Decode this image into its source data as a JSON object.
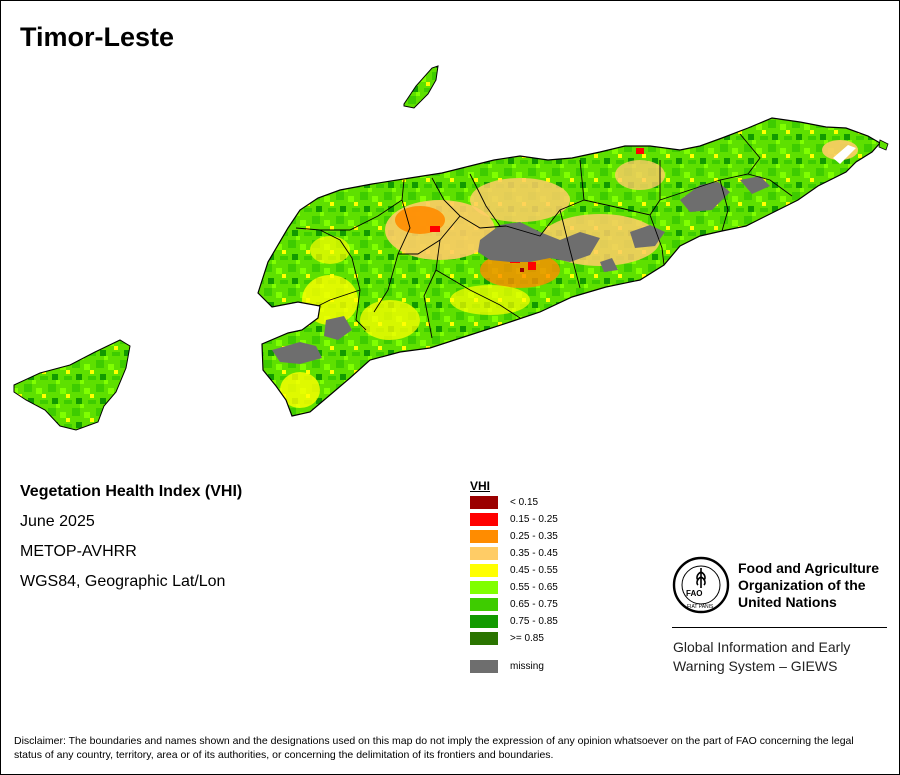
{
  "map": {
    "title": "Timor-Leste",
    "subtitle": "Vegetation Health Index (VHI)",
    "date": "June 2025",
    "sensor": "METOP-AVHRR",
    "projection": "WGS84, Geographic Lat/Lon"
  },
  "legend": {
    "title": "VHI",
    "items": [
      {
        "label": "< 0.15",
        "color": "#9b0000"
      },
      {
        "label": "0.15 - 0.25",
        "color": "#ff0000"
      },
      {
        "label": "0.25 - 0.35",
        "color": "#ff8c00"
      },
      {
        "label": "0.35 - 0.45",
        "color": "#ffcc66"
      },
      {
        "label": "0.45 - 0.55",
        "color": "#ffff00"
      },
      {
        "label": "0.55 - 0.65",
        "color": "#80ff00"
      },
      {
        "label": "0.65 - 0.75",
        "color": "#3ecc00"
      },
      {
        "label": "0.75 - 0.85",
        "color": "#129a00"
      },
      {
        "label": ">= 0.85",
        "color": "#2a7400"
      }
    ],
    "missing": {
      "label": "missing",
      "color": "#6e6e6e"
    }
  },
  "org": {
    "name_line1": "Food and Agriculture",
    "name_line2": "Organization of the",
    "name_line3": "United Nations",
    "system_line1": "Global Information and Early",
    "system_line2": "Warning System – GIEWS",
    "logo_letters": "FAO",
    "logo_motto": "FIAT PANIS"
  },
  "disclaimer": "Disclaimer: The boundaries and names shown and the designations used on this map do not imply the expression of any opinion whatsoever on the part of FAO concerning the legal status of any country, territory, area or of its authorities, or concerning the delimitation of its frontiers and boundaries."
}
